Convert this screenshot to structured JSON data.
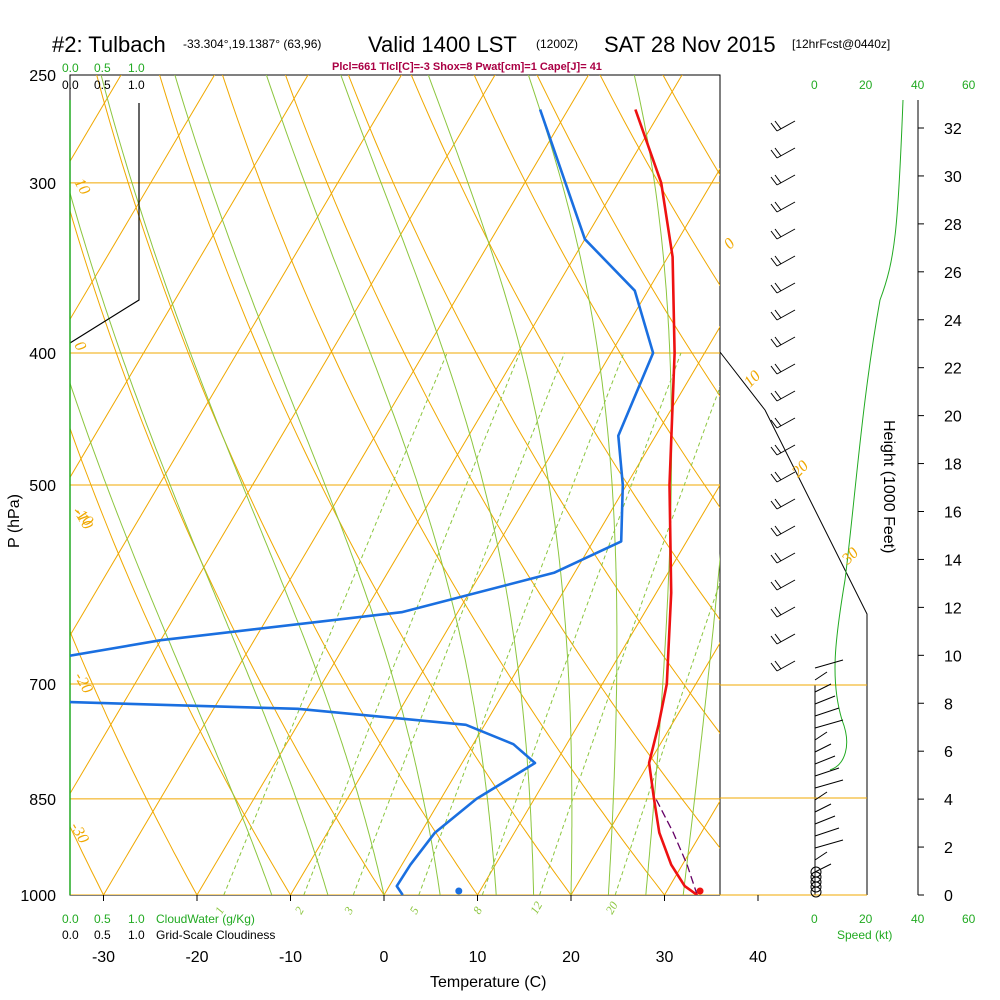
{
  "header": {
    "station": "#2: Tulbach",
    "location": "-33.304°,19.1387° (63,96)",
    "valid": "Valid 1400 LST",
    "zulu": "(1200Z)",
    "date": "SAT 28 Nov 2015",
    "forecast": "[12hrFcst@0440z]"
  },
  "stability_line": "Plcl=661 Tlcl[C]=-3 Shox=8 Pwat[cm]=1 Cape[J]= 41",
  "colors": {
    "temperature": "#ee1111",
    "dewpoint": "#1a6fe0",
    "isotherm": "#f0a800",
    "dry_adiabat": "#f0a800",
    "moist_adiabat": "#8cc63f",
    "mixing_ratio": "#8cc63f",
    "cloudwater": "#22aa22",
    "parcel": "#660066"
  },
  "chart_data": {
    "type": "skew-t",
    "xlabel": "Temperature (C)",
    "ylabel": "P (hPa)",
    "right_label": "Height (1000 Feet)",
    "x_ticks": [
      "-30",
      "-20",
      "-10",
      "0",
      "10",
      "20",
      "30",
      "40"
    ],
    "x_tick_values": [
      -30,
      -20,
      -10,
      0,
      10,
      20,
      30,
      40
    ],
    "p_ticks": [
      "250",
      "300",
      "400",
      "500",
      "700",
      "850",
      "1000"
    ],
    "p_tick_values": [
      250,
      300,
      400,
      500,
      700,
      850,
      1000
    ],
    "height_ticks": [
      "0",
      "2",
      "4",
      "6",
      "8",
      "10",
      "12",
      "14",
      "16",
      "18",
      "20",
      "22",
      "24",
      "26",
      "28",
      "30",
      "32"
    ],
    "height_tick_values": [
      0,
      2,
      4,
      6,
      8,
      10,
      12,
      14,
      16,
      18,
      20,
      22,
      24,
      26,
      28,
      30,
      32
    ],
    "temperature_profile": [
      {
        "p": 1000,
        "t": 33.5
      },
      {
        "p": 985,
        "t": 31.6
      },
      {
        "p": 950,
        "t": 28.8
      },
      {
        "p": 900,
        "t": 25.5
      },
      {
        "p": 850,
        "t": 22.8
      },
      {
        "p": 800,
        "t": 20.0
      },
      {
        "p": 750,
        "t": 18.6
      },
      {
        "p": 700,
        "t": 16.9
      },
      {
        "p": 600,
        "t": 11.6
      },
      {
        "p": 500,
        "t": 4.6
      },
      {
        "p": 400,
        "t": -3.2
      },
      {
        "p": 340,
        "t": -9.5
      },
      {
        "p": 300,
        "t": -15.4
      },
      {
        "p": 265,
        "t": -22.8
      }
    ],
    "dewpoint_profile": [
      {
        "p": 1000,
        "t": 2.0
      },
      {
        "p": 985,
        "t": 0.8
      },
      {
        "p": 950,
        "t": 0.9
      },
      {
        "p": 900,
        "t": 1.5
      },
      {
        "p": 850,
        "t": 3.8
      },
      {
        "p": 800,
        "t": 7.8
      },
      {
        "p": 775,
        "t": 4.3
      },
      {
        "p": 750,
        "t": -2.0
      },
      {
        "p": 730,
        "t": -21.0
      },
      {
        "p": 720,
        "t": -51.0
      },
      {
        "p": 680,
        "t": -55.0
      },
      {
        "p": 650,
        "t": -40.0
      },
      {
        "p": 620,
        "t": -16.0
      },
      {
        "p": 580,
        "t": -2.2
      },
      {
        "p": 550,
        "t": 3.0
      },
      {
        "p": 500,
        "t": -0.4
      },
      {
        "p": 460,
        "t": -4.0
      },
      {
        "p": 400,
        "t": -5.5
      },
      {
        "p": 360,
        "t": -11.4
      },
      {
        "p": 330,
        "t": -20.0
      },
      {
        "p": 265,
        "t": -33.0
      }
    ],
    "parcel_profile": [
      {
        "p": 1000,
        "t": 33.5
      },
      {
        "p": 950,
        "t": 30.5
      },
      {
        "p": 900,
        "t": 27.0
      },
      {
        "p": 850,
        "t": 23.0
      }
    ],
    "surface_markers": {
      "temperature": 33.8,
      "dewpoint": 8.0
    },
    "isotherm_labels": [
      "0",
      "10",
      "20",
      "30",
      "-10"
    ],
    "dry_adiabat_labels": [
      "10",
      "0",
      "-10",
      "-20",
      "-30"
    ],
    "mixing_ratio_labels": [
      "1",
      "2",
      "3",
      "5",
      "8",
      "12",
      "20"
    ],
    "cloud_scale": {
      "top_green": [
        "0.0",
        "0.5",
        "1.0"
      ],
      "top_black": [
        "0.0",
        "0.5",
        "1.0"
      ],
      "bottom_green": [
        "0.0",
        "0.5",
        "1.0"
      ],
      "bottom_black": [
        "0.0",
        "0.5",
        "1.0"
      ],
      "cloudwater_label": "CloudWater (g/Kg)",
      "cloudiness_label": "Grid-Scale Cloudiness"
    },
    "speed_scale": {
      "top_ticks": [
        "0",
        "20",
        "40",
        "60"
      ],
      "bottom_ticks": [
        "0",
        "20",
        "40",
        "60"
      ],
      "label": "Speed (kt)"
    }
  }
}
